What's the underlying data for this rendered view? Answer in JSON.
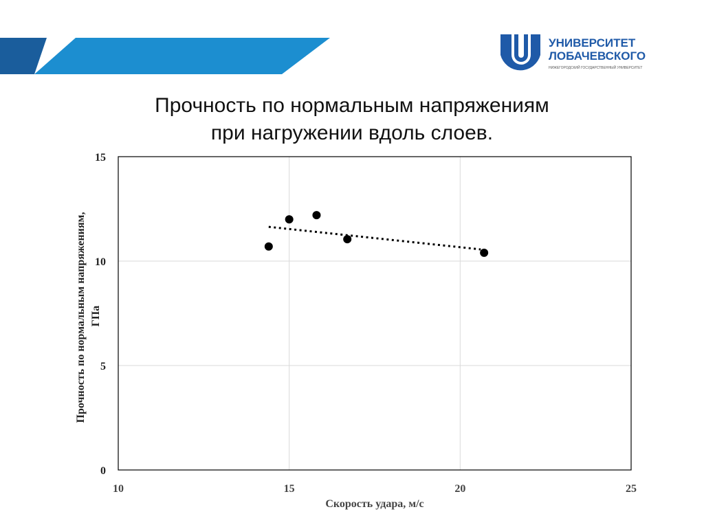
{
  "slide": {
    "title_line1": "Прочность по нормальным напряжениям",
    "title_line2": "при нагружении вдоль слоев.",
    "colors": {
      "banner_dark": "#1a5d9c",
      "banner_light": "#1c8ed0",
      "logo": "#1f5aa8"
    }
  },
  "logo": {
    "line1": "УНИВЕРСИТЕТ",
    "line2": "ЛОБАЧЕВСКОГО",
    "line3": "НИЖЕГОРОДСКИЙ ГОСУДАРСТВЕННЫЙ УНИВЕРСИТЕТ"
  },
  "chart_data": {
    "type": "scatter",
    "title": "",
    "xlabel": "Скорость удара, м/с",
    "ylabel": "Прочность по нормальным напряжениям, ГПа",
    "xlim": [
      10,
      25
    ],
    "ylim": [
      0,
      15
    ],
    "xticks": [
      10,
      15,
      20,
      25
    ],
    "yticks": [
      0,
      5,
      10,
      15
    ],
    "grid": true,
    "points": [
      {
        "x": 14.4,
        "y": 10.7
      },
      {
        "x": 15.0,
        "y": 12.0
      },
      {
        "x": 15.8,
        "y": 12.2
      },
      {
        "x": 16.7,
        "y": 11.05
      },
      {
        "x": 20.7,
        "y": 10.4
      }
    ],
    "trendline": {
      "style": "dotted",
      "type": "linear",
      "from": {
        "x": 14.4,
        "y": 11.64
      },
      "to": {
        "x": 20.6,
        "y": 10.56
      }
    }
  }
}
